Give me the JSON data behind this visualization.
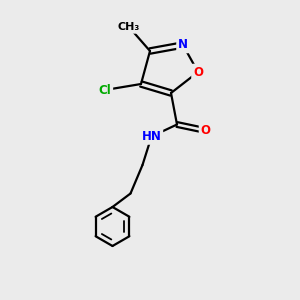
{
  "bg_color": "#ebebeb",
  "bond_color": "#000000",
  "atom_colors": {
    "O": "#ff0000",
    "N": "#0000ff",
    "Cl": "#00aa00",
    "C": "#000000"
  },
  "figsize": [
    3.0,
    3.0
  ],
  "dpi": 100
}
